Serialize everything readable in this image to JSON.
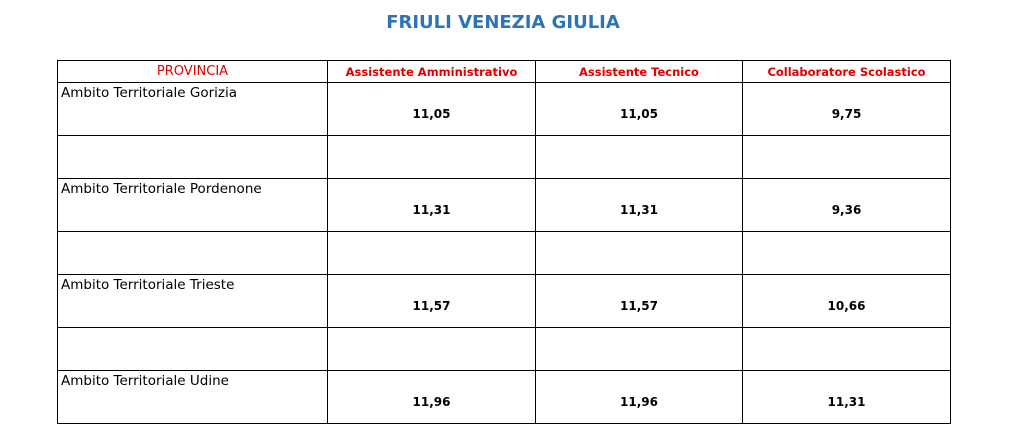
{
  "title": "FRIULI VENEZIA GIULIA",
  "table": {
    "header": [
      "PROVINCIA",
      "Assistente Amministrativo",
      "Assistente Tecnico",
      "Collaboratore Scolastico"
    ],
    "rows": [
      [
        "Ambito Territoriale Gorizia",
        "11,05",
        "11,05",
        "9,75"
      ],
      [
        "Ambito Territoriale Pordenone",
        "11,31",
        "11,31",
        "9,36"
      ],
      [
        "Ambito Territoriale Trieste",
        "11,57",
        "11,57",
        "10,66"
      ],
      [
        "Ambito Territoriale Udine",
        "11,96",
        "11,96",
        "11,31"
      ]
    ]
  }
}
